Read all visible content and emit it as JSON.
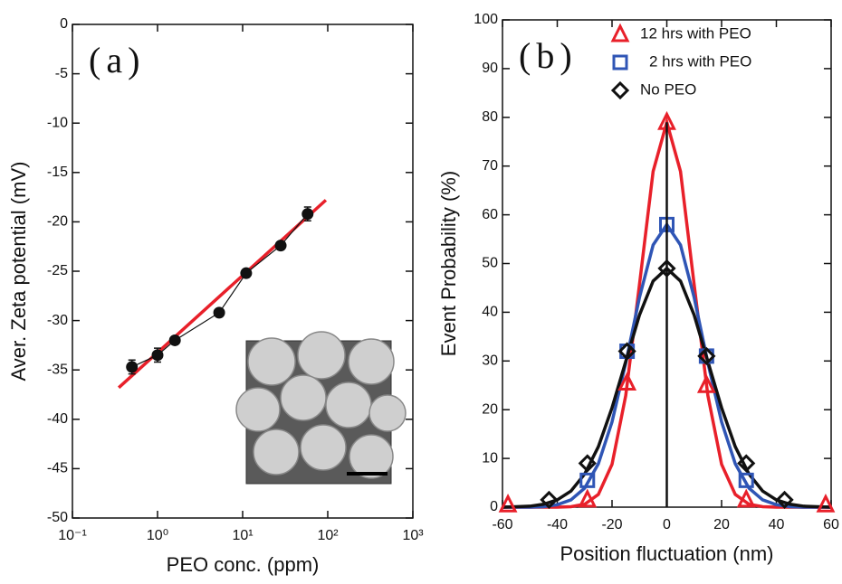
{
  "charts": [
    {
      "type": "scatter",
      "panel_label": "(a)",
      "x_label": "PEO conc. (ppm)",
      "y_label": "Aver. Zeta potential (mV)",
      "xscale": "log",
      "xlim": [
        0.1,
        1000
      ],
      "xticks": [
        {
          "value": 0.1,
          "label": "10⁻¹"
        },
        {
          "value": 1,
          "label": "10⁰"
        },
        {
          "value": 10,
          "label": "10¹"
        },
        {
          "value": 100,
          "label": "10²"
        },
        {
          "value": 1000,
          "label": "10³"
        }
      ],
      "ylim": [
        -50,
        0
      ],
      "yticks": [
        -50,
        -45,
        -40,
        -35,
        -30,
        -25,
        -20,
        -15,
        -10,
        -5,
        0
      ],
      "series": [
        {
          "color": "#111111",
          "marker": "circle",
          "filled": true,
          "connect": true,
          "x": [
            0.5,
            1,
            1.6,
            5.3,
            11,
            28,
            58
          ],
          "values": [
            -34.7,
            -33.5,
            -32,
            -29.2,
            -25.2,
            -22.4,
            -19.2
          ],
          "errors": [
            0.7,
            0.7,
            0.4,
            0.4,
            0.4,
            0.4,
            0.7
          ]
        }
      ],
      "fits": {
        "x": [
          0.35,
          95
        ],
        "series": [
          {
            "color": "#e8202a",
            "values": [
              -36.8,
              -17.8
            ]
          }
        ]
      }
    },
    {
      "type": "scatter",
      "panel_label": "(b)",
      "x_label": "Position fluctuation (nm)",
      "y_label": "Event Probability (%)",
      "xlim": [
        -60,
        60
      ],
      "xticks": [
        -60,
        -40,
        -20,
        0,
        20,
        40,
        60
      ],
      "ylim": [
        0,
        100
      ],
      "yticks": [
        0,
        10,
        20,
        30,
        40,
        50,
        60,
        70,
        80,
        90,
        100
      ],
      "legend": "upper right",
      "series": [
        {
          "name": "12 hrs with PEO",
          "color": "#e8202a",
          "marker": "triangle",
          "x": [
            -58,
            -29,
            -14.5,
            0,
            14.5,
            29,
            58
          ],
          "values": [
            0.5,
            1.5,
            25.5,
            79,
            25,
            1.5,
            0.5
          ]
        },
        {
          "name": "2 hrs with PEO",
          "color": "#2f55b5",
          "marker": "square",
          "x": [
            -29,
            -14.5,
            0,
            14.5,
            29
          ],
          "values": [
            5.5,
            32,
            58,
            31,
            5.5
          ]
        },
        {
          "name": "No PEO",
          "color": "#111111",
          "marker": "diamond",
          "x": [
            -43,
            -29,
            -14.5,
            0,
            14.5,
            29,
            43
          ],
          "values": [
            1.5,
            9,
            32,
            49,
            31,
            9,
            1.5
          ]
        }
      ],
      "fits": {
        "x": [
          -60,
          -55,
          -50,
          -45,
          -40,
          -35,
          -30,
          -25,
          -20,
          -15,
          -10,
          -5,
          0,
          5,
          10,
          15,
          20,
          25,
          30,
          35,
          40,
          45,
          50,
          55,
          60
        ],
        "series": [
          {
            "color": "#e8202a",
            "values": [
              0,
              0,
              0,
              0,
              0,
              0.1,
              0.6,
              2.6,
              8.8,
              22.9,
              45.6,
              68.9,
              79,
              68.9,
              45.6,
              22.9,
              8.8,
              2.6,
              0.6,
              0.1,
              0,
              0,
              0,
              0,
              0
            ]
          },
          {
            "color": "#2f55b5",
            "values": [
              0,
              0,
              0,
              0.1,
              0.5,
              1.5,
              3.9,
              8.9,
              17.5,
              29.6,
              43.0,
              53.8,
              58,
              53.8,
              43.0,
              29.6,
              17.5,
              8.9,
              3.9,
              1.5,
              0.5,
              0.1,
              0,
              0,
              0
            ]
          },
          {
            "color": "#111111",
            "values": [
              0,
              0.1,
              0.2,
              0.6,
              1.5,
              3.3,
              6.8,
              12.4,
              20.4,
              29.9,
              39.4,
              46.4,
              49,
              46.4,
              39.4,
              29.9,
              20.4,
              12.4,
              6.8,
              3.3,
              1.5,
              0.6,
              0.2,
              0.1,
              0
            ]
          }
        ]
      }
    }
  ]
}
